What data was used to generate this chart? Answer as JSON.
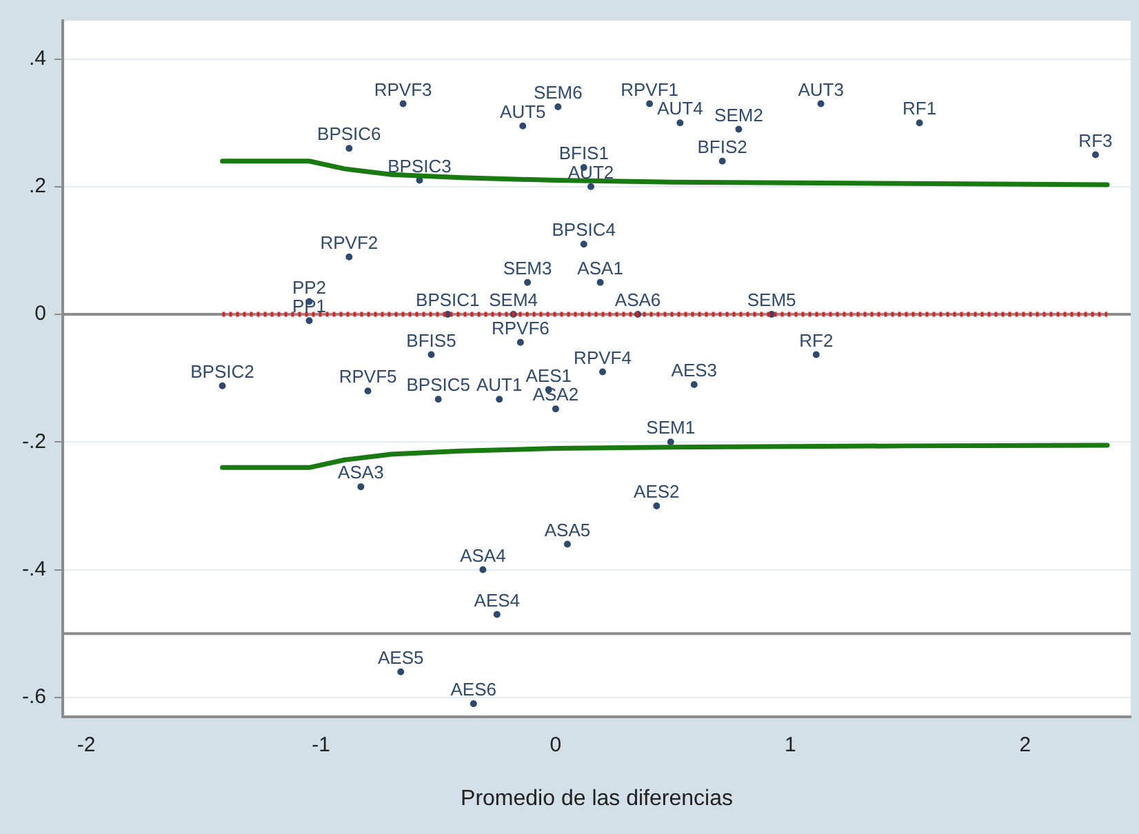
{
  "chart_data": {
    "type": "scatter",
    "xlabel": "Promedio de las diferencias",
    "xlim": [
      -2.1,
      2.45
    ],
    "ylim": [
      -0.63,
      0.46
    ],
    "xticks": [
      -2,
      -1,
      0,
      1,
      2
    ],
    "yticks": [
      {
        "value": 0.4,
        "label": ".4"
      },
      {
        "value": 0.2,
        "label": ".2"
      },
      {
        "value": 0,
        "label": "0"
      },
      {
        "value": -0.2,
        "label": "-.2"
      },
      {
        "value": -0.4,
        "label": "-.4"
      },
      {
        "value": -0.6,
        "label": "-.6"
      }
    ],
    "grid": "y",
    "ref_lines": [
      {
        "axis": "y",
        "value": 0,
        "color": "#8c8c8c"
      },
      {
        "axis": "y",
        "value": -0.5,
        "color": "#8c8c8c"
      }
    ],
    "series": [
      {
        "type": "line",
        "color": "#1a7a12",
        "marker": "none",
        "line_style": "solid",
        "x": [
          -1.42,
          -1.05,
          -0.9,
          -0.7,
          -0.4,
          0,
          0.5,
          1,
          1.5,
          2.35
        ],
        "values": [
          0.24,
          0.24,
          0.228,
          0.219,
          0.214,
          0.21,
          0.207,
          0.206,
          0.205,
          0.203
        ]
      },
      {
        "type": "line",
        "color": "#1a7a12",
        "marker": "none",
        "line_style": "solid",
        "x": [
          -1.42,
          -1.05,
          -0.9,
          -0.7,
          -0.4,
          0,
          0.5,
          1,
          1.5,
          2.35
        ],
        "values": [
          -0.24,
          -0.24,
          -0.228,
          -0.219,
          -0.214,
          -0.21,
          -0.208,
          -0.207,
          -0.206,
          -0.205
        ]
      },
      {
        "type": "line",
        "color": "#f01c1c",
        "marker": "none",
        "line_style": "dotted",
        "x": [
          -1.42,
          2.35
        ],
        "values": [
          0,
          0
        ]
      },
      {
        "color": "#2e4a6e",
        "marker": "circle",
        "x": [
          -0.65,
          0.01,
          -0.14,
          0.4,
          0.53,
          0.78,
          1.13,
          1.55,
          2.3,
          -0.88,
          -0.58,
          0.12,
          0.15,
          0.71,
          -0.88,
          0.12,
          -0.12,
          0.19,
          -1.05,
          -1.05,
          -0.46,
          -0.18,
          0.35,
          0.92,
          -0.15,
          -0.53,
          -1.42,
          -0.8,
          -0.5,
          -0.24,
          0.2,
          -0.03,
          0,
          0.59,
          1.11,
          0.49,
          -0.83,
          0.43,
          0.05,
          -0.31,
          -0.25,
          -0.66,
          -0.35
        ],
        "values": [
          0.33,
          0.325,
          0.295,
          0.33,
          0.3,
          0.29,
          0.33,
          0.3,
          0.25,
          0.26,
          0.21,
          0.23,
          0.2,
          0.24,
          0.09,
          0.11,
          0.05,
          0.05,
          0.02,
          -0.01,
          0,
          0,
          0,
          0,
          -0.044,
          -0.063,
          -0.112,
          -0.12,
          -0.133,
          -0.133,
          -0.09,
          -0.118,
          -0.148,
          -0.11,
          -0.063,
          -0.2,
          -0.27,
          -0.3,
          -0.36,
          -0.4,
          -0.47,
          -0.56,
          -0.61
        ],
        "value_labels": [
          "RPVF3",
          "SEM6",
          "AUT5",
          "RPVF1",
          "AUT4",
          "SEM2",
          "AUT3",
          "RF1",
          "RF3",
          "BPSIC6",
          "BPSIC3",
          "BFIS1",
          "AUT2",
          "BFIS2",
          "RPVF2",
          "BPSIC4",
          "SEM3",
          "ASA1",
          "PP2",
          "PP1",
          "BPSIC1",
          "SEM4",
          "ASA6",
          "SEM5",
          "RPVF6",
          "BFIS5",
          "BPSIC2",
          "RPVF5",
          "BPSIC5",
          "AUT1",
          "RPVF4",
          "AES1",
          "ASA2",
          "AES3",
          "RF2",
          "SEM1",
          "ASA3",
          "AES2",
          "ASA5",
          "ASA4",
          "AES4",
          "AES5",
          "AES6"
        ]
      }
    ]
  }
}
